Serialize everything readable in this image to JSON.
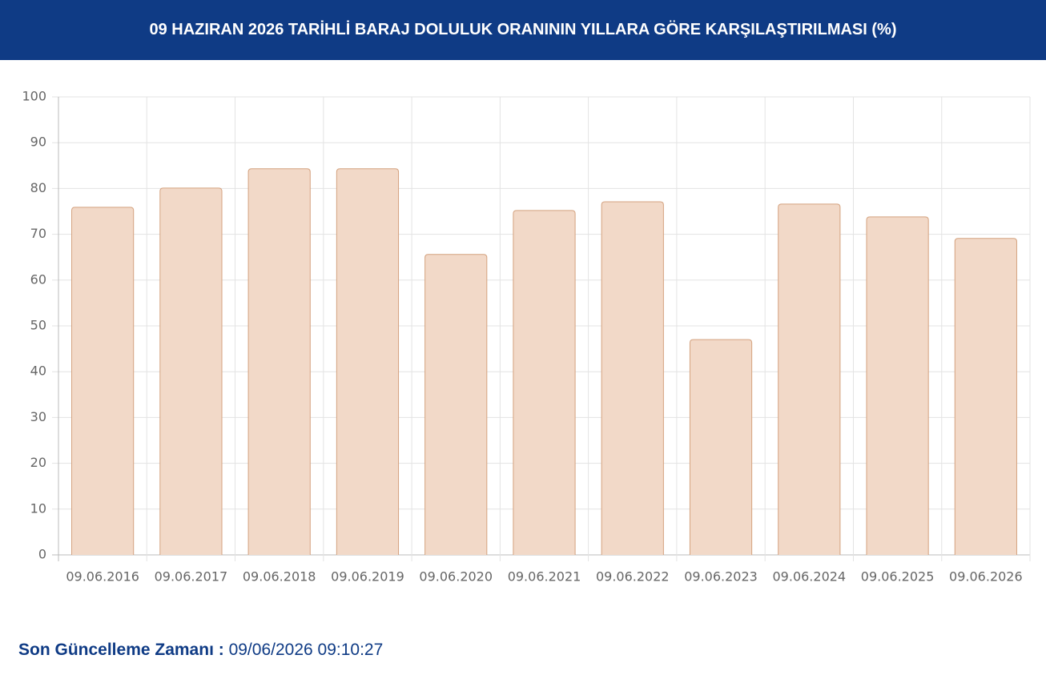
{
  "chart_data": {
    "type": "bar",
    "title": "09 HAZIRAN 2026 TARİHLİ BARAJ DOLULUK ORANININ YILLARA GÖRE KARŞILAŞTIRILMASI (%)",
    "categories": [
      "09.06.2016",
      "09.06.2017",
      "09.06.2018",
      "09.06.2019",
      "09.06.2020",
      "09.06.2021",
      "09.06.2022",
      "09.06.2023",
      "09.06.2024",
      "09.06.2025",
      "09.06.2026"
    ],
    "values": [
      75.9,
      80.1,
      84.3,
      84.3,
      65.6,
      75.2,
      77.1,
      47.0,
      76.6,
      73.8,
      69.1
    ],
    "color": "#f2d9c8",
    "border_color": "#d4a27f",
    "ylim": [
      0,
      100
    ],
    "yticks": [
      0,
      10,
      20,
      30,
      40,
      50,
      60,
      70,
      80,
      90,
      100
    ],
    "grid": true
  },
  "footer": {
    "label": "Son Güncelleme Zamanı :",
    "value": "09/06/2026 09:10:27"
  }
}
